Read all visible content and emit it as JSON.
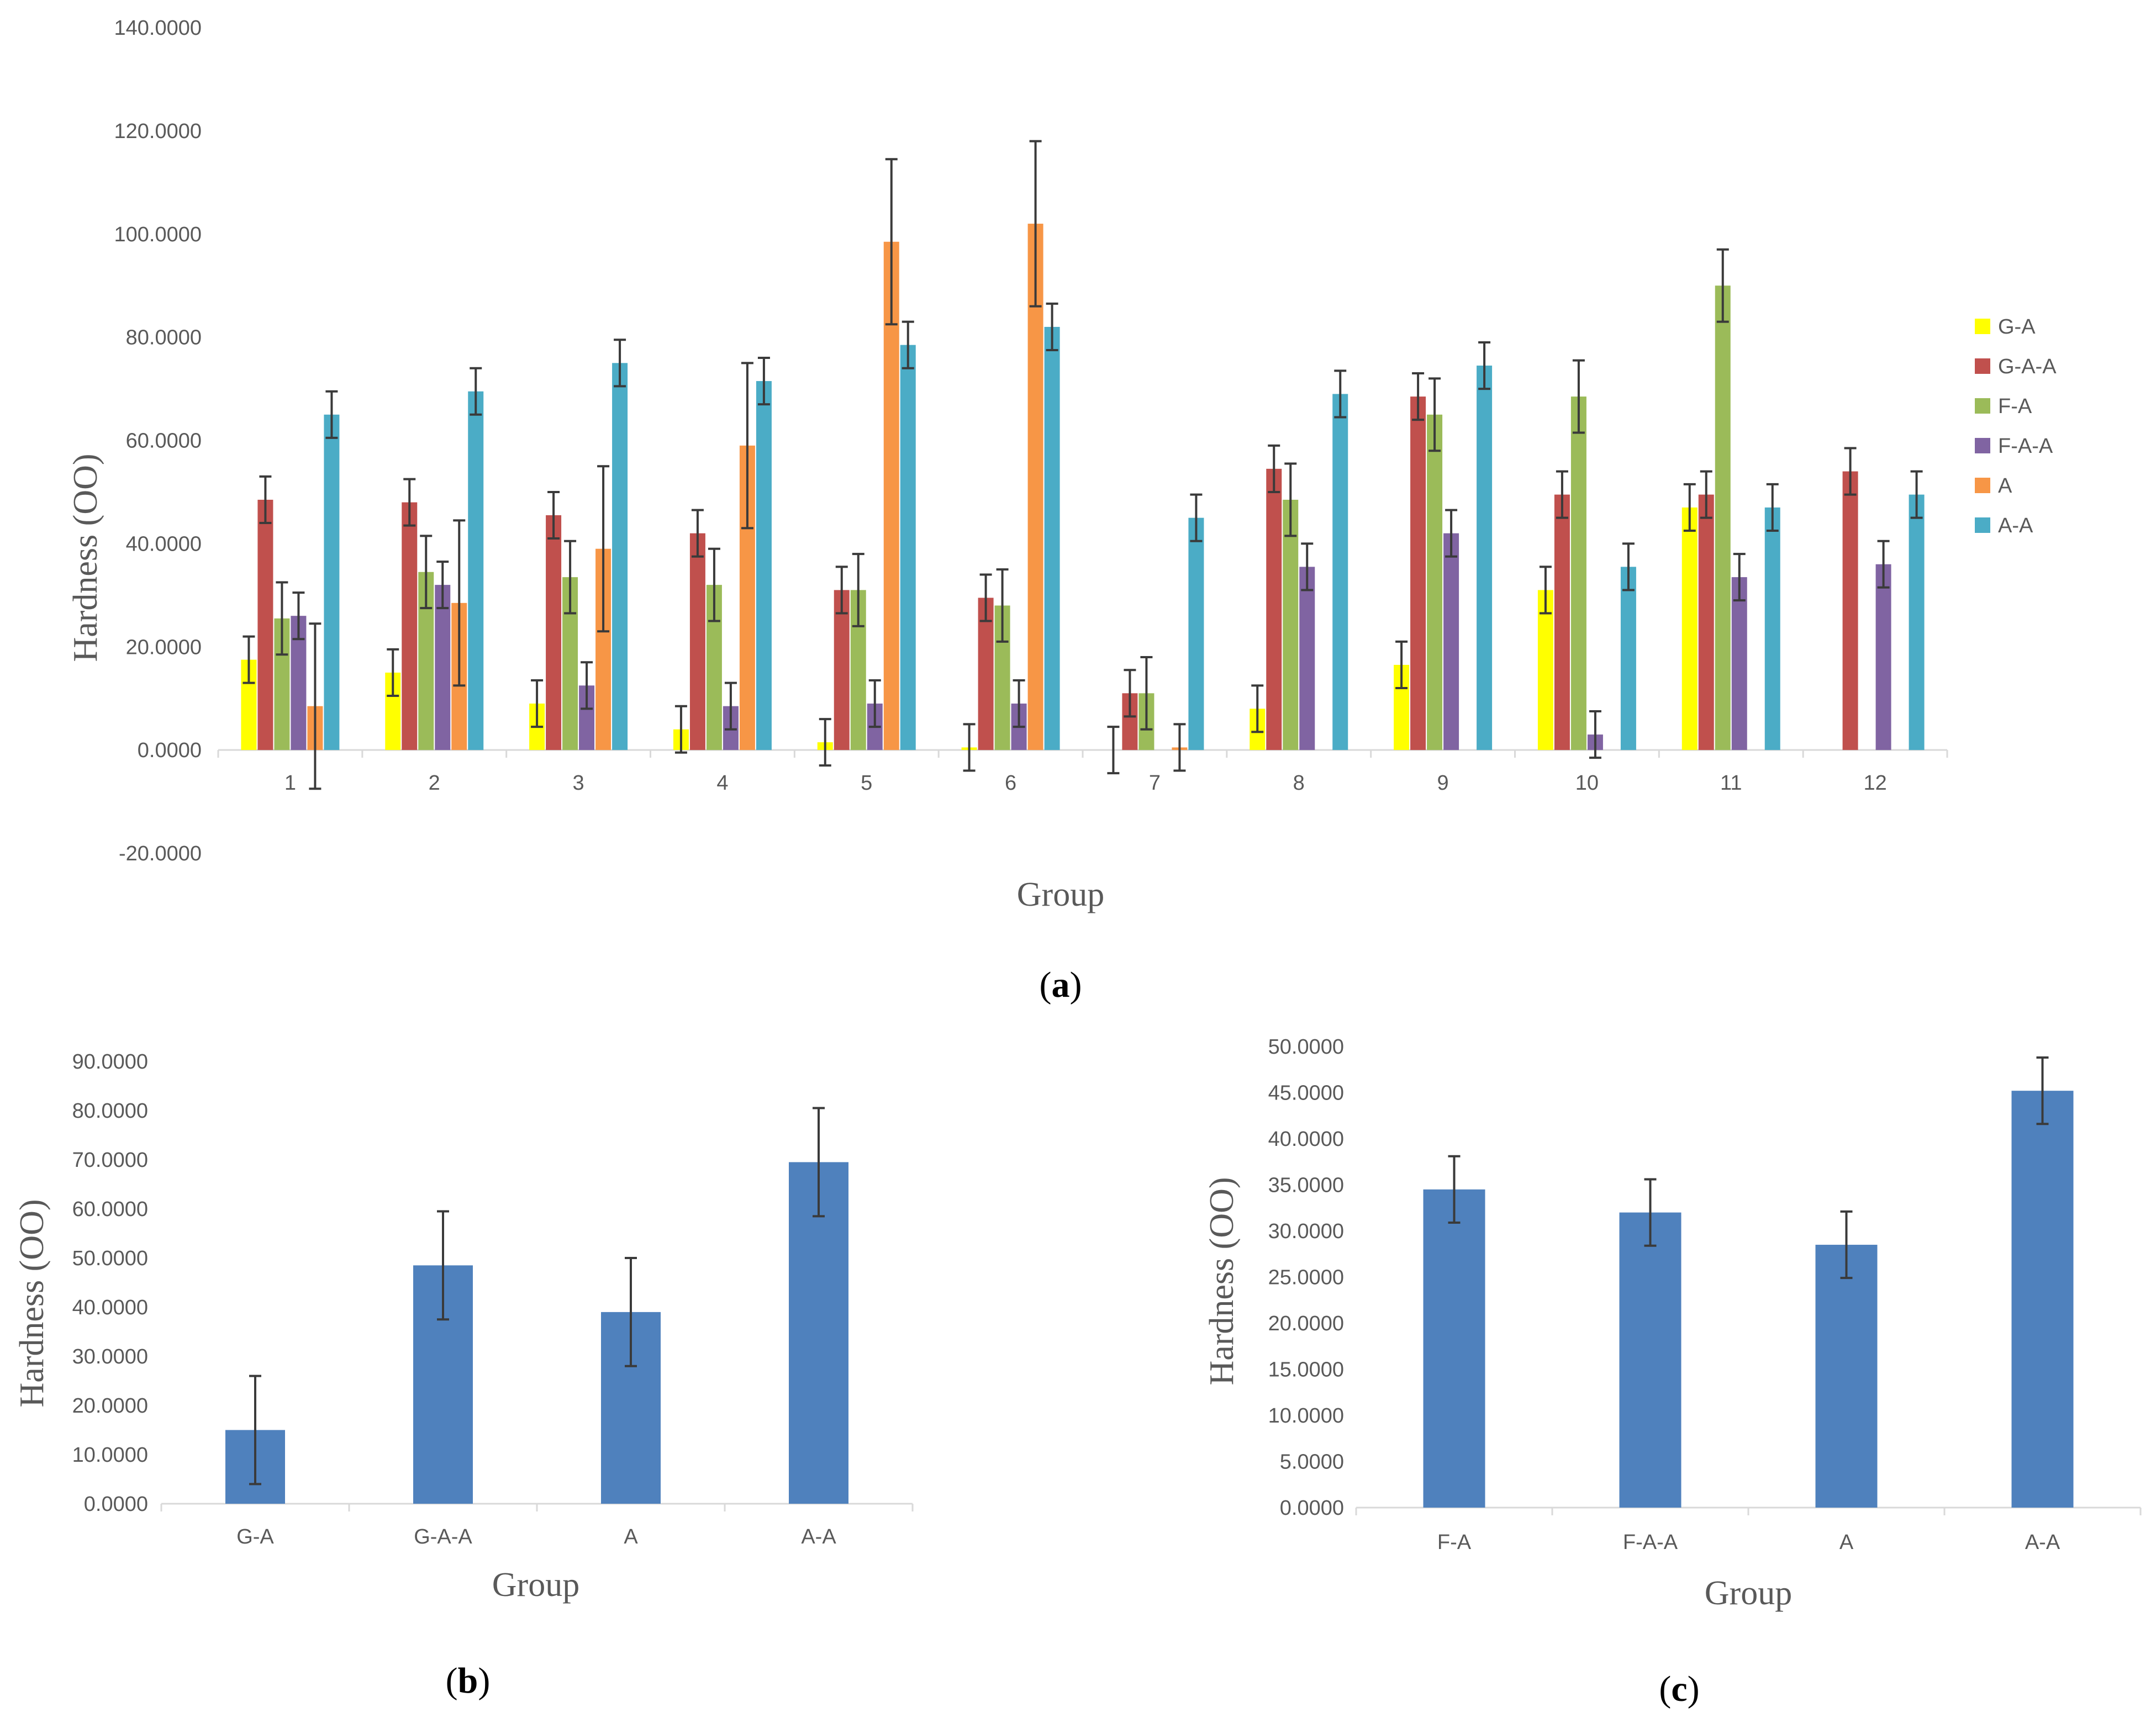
{
  "chart_data": [
    {
      "id": "a",
      "type": "bar",
      "caption_letter": "a",
      "xlabel": "Group",
      "ylabel": "Hardness (OO)",
      "ylim": [
        -20,
        140
      ],
      "yticks": [
        "-20.0000",
        "0.0000",
        "20.0000",
        "40.0000",
        "60.0000",
        "80.0000",
        "100.0000",
        "120.0000",
        "140.0000"
      ],
      "categories": [
        "1",
        "2",
        "3",
        "4",
        "5",
        "6",
        "7",
        "8",
        "9",
        "10",
        "11",
        "12"
      ],
      "legend_position": "right",
      "series": [
        {
          "name": "G-A",
          "color": "#ffff00",
          "values": [
            17.5,
            15.0,
            9.0,
            4.0,
            1.5,
            0.5,
            0.0,
            8.0,
            16.5,
            31.0,
            47.0,
            0.0
          ],
          "errors": [
            4.5,
            4.5,
            4.5,
            4.5,
            4.5,
            4.5,
            4.5,
            4.5,
            4.5,
            4.5,
            4.5,
            0
          ]
        },
        {
          "name": "G-A-A",
          "color": "#c0504d",
          "values": [
            48.5,
            48.0,
            45.5,
            42.0,
            31.0,
            29.5,
            11.0,
            54.5,
            68.5,
            49.5,
            49.5,
            54.0
          ],
          "errors": [
            4.5,
            4.5,
            4.5,
            4.5,
            4.5,
            4.5,
            4.5,
            4.5,
            4.5,
            4.5,
            4.5,
            4.5
          ]
        },
        {
          "name": "F-A",
          "color": "#9bbb59",
          "values": [
            25.5,
            34.5,
            33.5,
            32.0,
            31.0,
            28.0,
            11.0,
            48.5,
            65.0,
            68.5,
            90.0,
            0.0
          ],
          "errors": [
            7.0,
            7.0,
            7.0,
            7.0,
            7.0,
            7.0,
            7.0,
            7.0,
            7.0,
            7.0,
            7.0,
            0
          ]
        },
        {
          "name": "F-A-A",
          "color": "#8064a2",
          "values": [
            26.0,
            32.0,
            12.5,
            8.5,
            9.0,
            9.0,
            0.0,
            35.5,
            42.0,
            3.0,
            33.5,
            36.0
          ],
          "errors": [
            4.5,
            4.5,
            4.5,
            4.5,
            4.5,
            4.5,
            0,
            4.5,
            4.5,
            4.5,
            4.5,
            4.5
          ]
        },
        {
          "name": "A",
          "color": "#f79646",
          "values": [
            8.5,
            28.5,
            39.0,
            59.0,
            98.5,
            102.0,
            0.5,
            0.0,
            0.0,
            0.0,
            0.0,
            0.0
          ],
          "errors": [
            16.0,
            16.0,
            16.0,
            16.0,
            16.0,
            16.0,
            4.5,
            0,
            0,
            0,
            0,
            0
          ]
        },
        {
          "name": "A-A",
          "color": "#4bacc6",
          "values": [
            65.0,
            69.5,
            75.0,
            71.5,
            78.5,
            82.0,
            45.0,
            69.0,
            74.5,
            35.5,
            47.0,
            49.5
          ],
          "errors": [
            4.5,
            4.5,
            4.5,
            4.5,
            4.5,
            4.5,
            4.5,
            4.5,
            4.5,
            4.5,
            4.5,
            4.5
          ]
        }
      ]
    },
    {
      "id": "b",
      "type": "bar",
      "caption_letter": "b",
      "xlabel": "Group",
      "ylabel": "Hardness (OO)",
      "ylim": [
        0,
        90
      ],
      "yticks": [
        "0.0000",
        "10.0000",
        "20.0000",
        "30.0000",
        "40.0000",
        "50.0000",
        "60.0000",
        "70.0000",
        "80.0000",
        "90.0000"
      ],
      "categories": [
        "G-A",
        "G-A-A",
        "A",
        "A-A"
      ],
      "color": "#4f81bd",
      "values": [
        15.0,
        48.5,
        39.0,
        69.5
      ],
      "errors": [
        11.0,
        11.0,
        11.0,
        11.0
      ]
    },
    {
      "id": "c",
      "type": "bar",
      "caption_letter": "c",
      "xlabel": "Group",
      "ylabel": "Hardness (OO)",
      "ylim": [
        0,
        50
      ],
      "yticks": [
        "0.0000",
        "5.0000",
        "10.0000",
        "15.0000",
        "20.0000",
        "25.0000",
        "30.0000",
        "35.0000",
        "40.0000",
        "45.0000",
        "50.0000"
      ],
      "categories": [
        "F-A",
        "F-A-A",
        "A",
        "A-A"
      ],
      "color": "#4f81bd",
      "values": [
        34.5,
        32.0,
        28.5,
        45.2
      ],
      "errors": [
        3.6,
        3.6,
        3.6,
        3.6
      ]
    }
  ]
}
